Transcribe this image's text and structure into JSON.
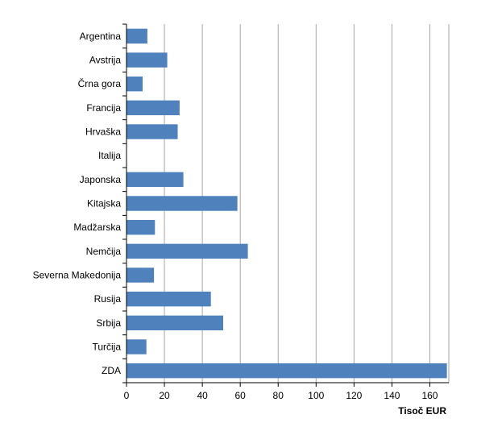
{
  "chart_data": {
    "type": "bar",
    "orientation": "horizontal",
    "categories": [
      "Argentina",
      "Avstrija",
      "Črna gora",
      "Francija",
      "Hrvaška",
      "Italija",
      "Japonska",
      "Kitajska",
      "Madžarska",
      "Nemčija",
      "Severna Makedonija",
      "Rusija",
      "Srbija",
      "Turčija",
      "ZDA"
    ],
    "values": [
      11,
      21.5,
      8.5,
      28,
      27,
      0,
      30,
      58.5,
      15,
      64,
      14.5,
      44.5,
      51,
      10.5,
      169
    ],
    "xlabel": "Tisoč EUR",
    "ylabel": "",
    "xlim": [
      0,
      170
    ],
    "x_ticks": [
      0,
      20,
      40,
      60,
      80,
      100,
      120,
      140,
      160
    ],
    "grid": "vertical",
    "legend": "none",
    "bar_color": "#4F81BD",
    "grid_color": "#A6A6A6",
    "axis_color": "#000000"
  }
}
